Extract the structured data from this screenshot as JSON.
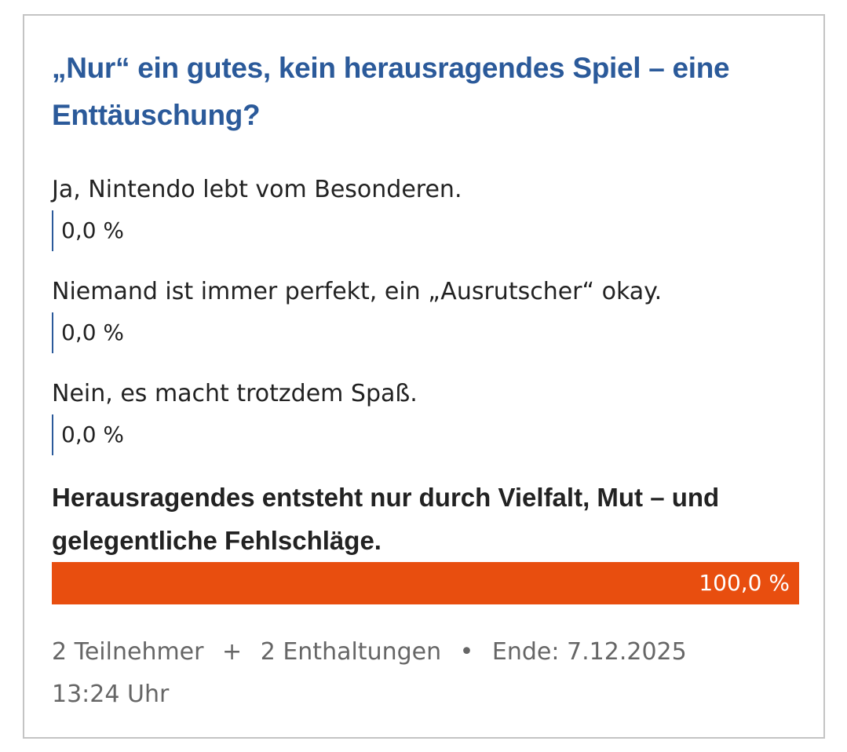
{
  "poll": {
    "title": "„Nur“ ein gutes, kein herausragendes Spiel – eine Enttäuschung?",
    "bar_color": "#e84e0f",
    "empty_color": "#2b5a9a",
    "options": [
      {
        "label": "Ja, Nintendo lebt vom Besonderen.",
        "percent": 0,
        "percent_label": "0,0 %"
      },
      {
        "label": "Niemand ist immer perfekt, ein „Ausrutscher“ okay.",
        "percent": 0,
        "percent_label": "0,0 %"
      },
      {
        "label": "Nein, es macht trotzdem Spaß.",
        "percent": 0,
        "percent_label": "0,0 %"
      },
      {
        "label": "Herausragendes entsteht nur durch Vielfalt, Mut – und gelegentliche Fehlschläge.",
        "percent": 100,
        "percent_label": "100,0 %"
      }
    ],
    "footer": {
      "participants": "2 Teilnehmer",
      "plus": "+",
      "abstentions": "2 Enthaltungen",
      "dot": "•",
      "end": "Ende: 7.12.2025 13:24 Uhr"
    }
  }
}
